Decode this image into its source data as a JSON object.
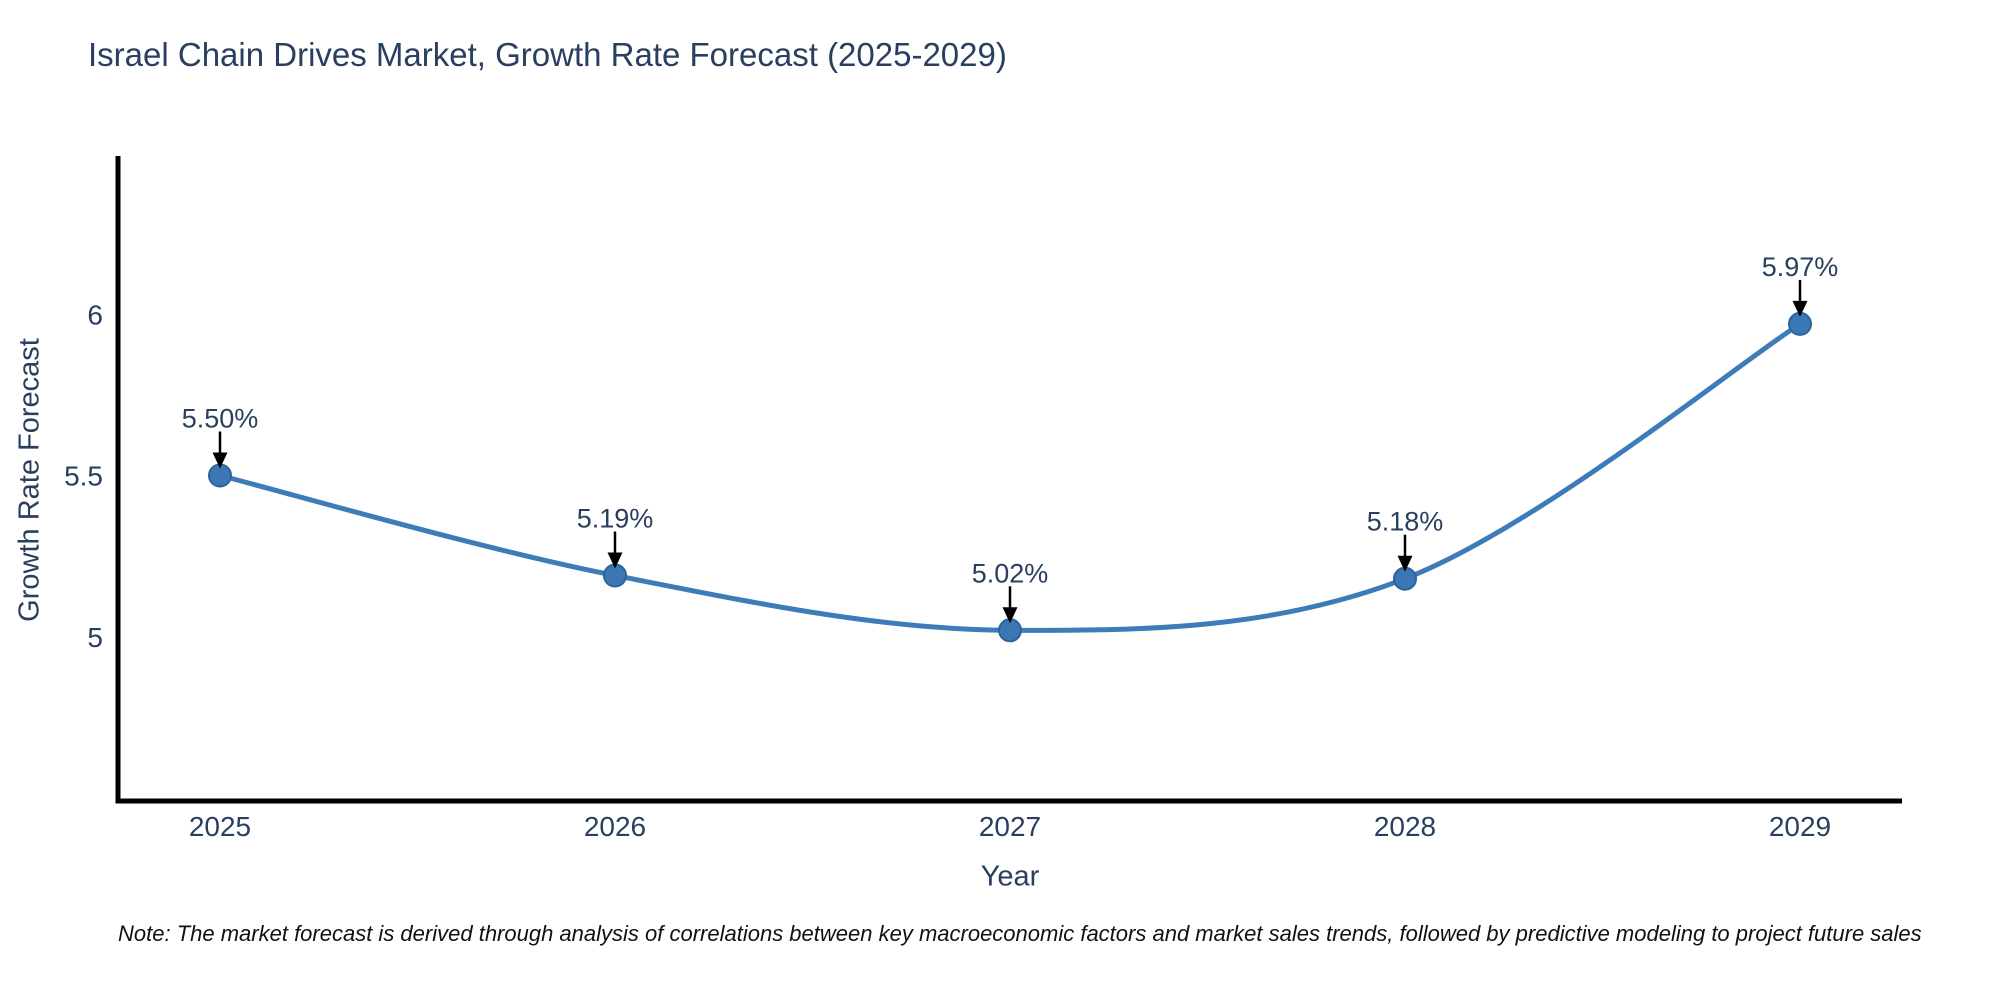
{
  "title": "Israel Chain Drives Market, Growth Rate Forecast (2025-2029)",
  "note": "Note: The market forecast is derived through analysis of correlations between key macroeconomic factors and market sales trends, followed by predictive modeling to project future sales",
  "chart_data": {
    "type": "line",
    "title": "Israel Chain Drives Market, Growth Rate Forecast (2025-2029)",
    "x": [
      2025,
      2026,
      2027,
      2028,
      2029
    ],
    "xtick_labels": [
      "2025",
      "2026",
      "2027",
      "2028",
      "2029"
    ],
    "series": [
      {
        "name": "Growth Rate Forecast",
        "values": [
          5.5,
          5.19,
          5.02,
          5.18,
          5.97
        ]
      }
    ],
    "point_labels": [
      "5.50%",
      "5.19%",
      "5.02%",
      "5.18%",
      "5.97%"
    ],
    "xlabel": "Year",
    "ylabel": "Growth Rate Forecast",
    "ylim": [
      4.5,
      6.5
    ],
    "yticks": [
      5,
      5.5,
      6
    ],
    "ytick_labels": [
      "5",
      "5.5",
      "6"
    ],
    "grid": false,
    "legend": "none",
    "line_shape": "spline",
    "annotation_style": "value label with black down arrow to marker",
    "colors": {
      "line": "#3d7cb8",
      "marker_fill": "#3a77b3",
      "marker_edge": "#2d639b",
      "text": "#2a3f5f",
      "axis": "#000000",
      "arrow": "#000000",
      "note_text": "#111111",
      "background": "#ffffff"
    }
  }
}
